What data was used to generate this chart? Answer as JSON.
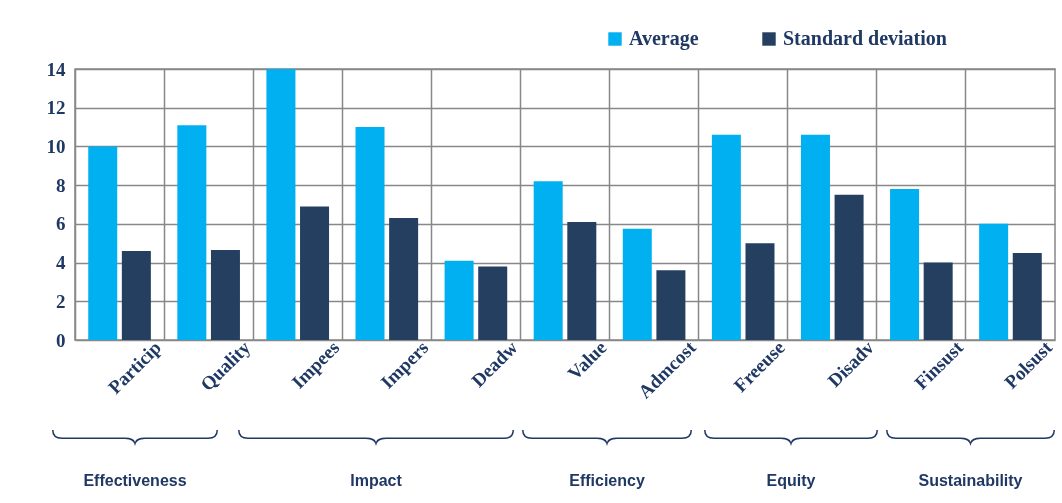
{
  "chart_data": {
    "type": "bar",
    "categories": [
      "Particip",
      "Quality",
      "Impees",
      "Impers",
      "Deadw",
      "Value",
      "Admcost",
      "Freeuse",
      "Disadv",
      "Finsust",
      "Polsust"
    ],
    "series": [
      {
        "name": "Average",
        "color": "#00b0f0",
        "values": [
          10.0,
          11.1,
          14.0,
          11.0,
          4.1,
          8.2,
          5.75,
          10.6,
          10.6,
          7.8,
          6.0
        ]
      },
      {
        "name": "Standard deviation",
        "color": "#243f60",
        "values": [
          4.6,
          4.65,
          6.9,
          6.3,
          3.8,
          6.1,
          3.6,
          5.0,
          7.5,
          4.0,
          4.5
        ]
      }
    ],
    "ylim": [
      0,
      14
    ],
    "yticks": [
      0,
      2,
      4,
      6,
      8,
      10,
      12,
      14
    ],
    "grid": true,
    "legend": "top right",
    "annotations": [
      "Effectiveness",
      "Impact",
      "Efficiency",
      "Equity",
      "Sustainability"
    ]
  }
}
